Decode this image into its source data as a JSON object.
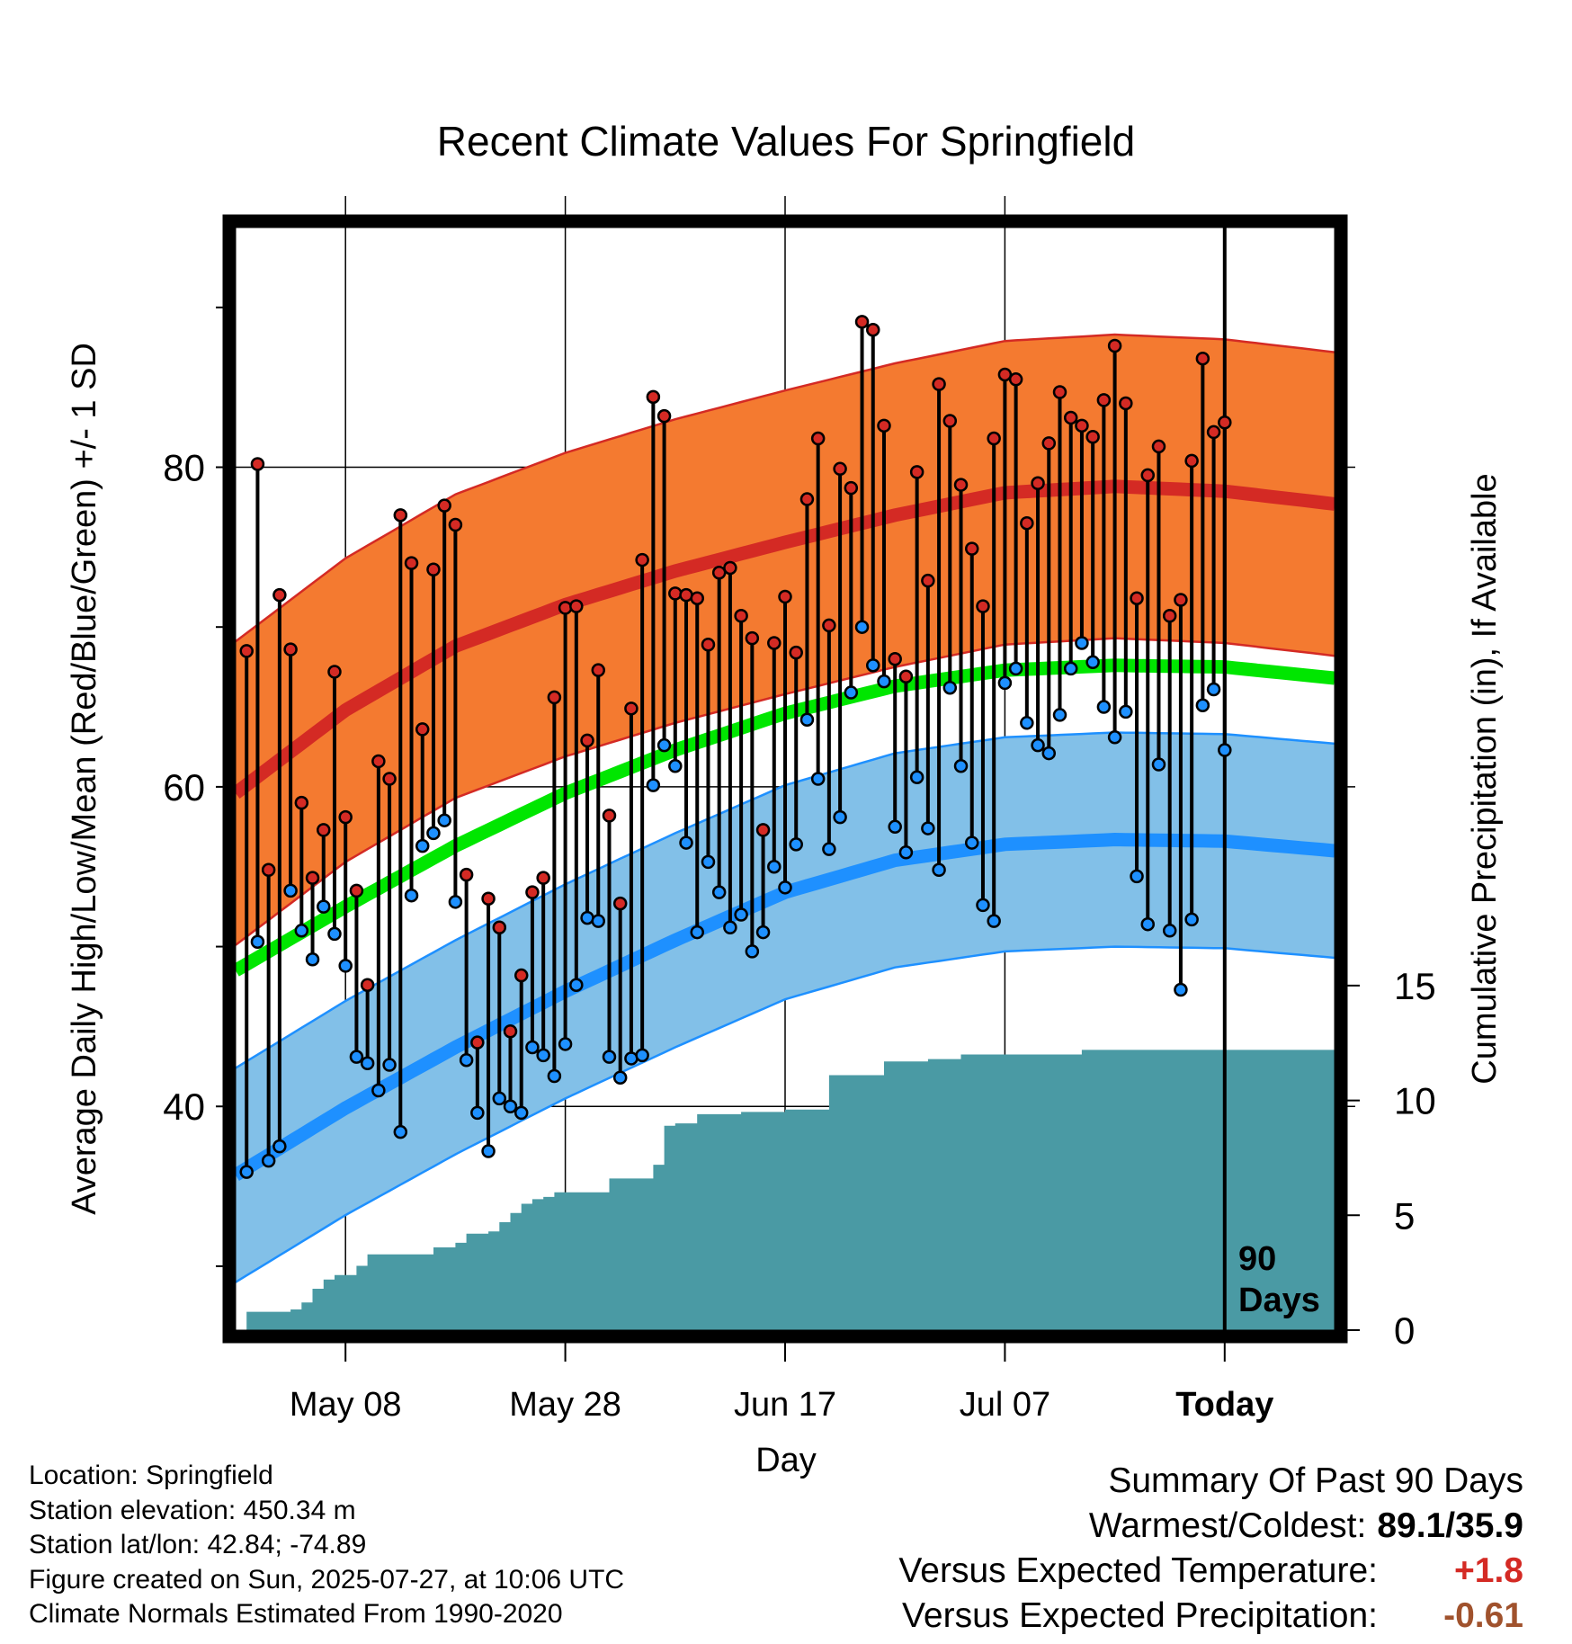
{
  "chart_data": {
    "type": "line",
    "title": "Recent Climate Values For Springfield",
    "xlabel": "Day",
    "ylabel_left": "Average Daily High/Low/Mean (Red/Blue/Green) +/- 1 SD",
    "ylabel_right": "Cumulative Precipitation (in), If Available",
    "x_range": [
      "2025-04-28",
      "2025-08-06"
    ],
    "x_ticks": [
      {
        "date": "2025-05-08",
        "label": "May 08"
      },
      {
        "date": "2025-05-28",
        "label": "May 28"
      },
      {
        "date": "2025-06-17",
        "label": "Jun 17"
      },
      {
        "date": "2025-07-07",
        "label": "Jul 07"
      },
      {
        "date": "2025-07-27",
        "label": "Today"
      }
    ],
    "y_left_range": [
      26,
      95
    ],
    "y_left_ticks": [
      40,
      60,
      80
    ],
    "y_left_minor_ticks": [
      30,
      50,
      70,
      90
    ],
    "y_right_range": [
      0,
      48
    ],
    "y_right_ticks": [
      0,
      5,
      10,
      15
    ],
    "grid": true,
    "today_line": {
      "date": "2025-07-27",
      "label_top": "90",
      "label_bottom": "Days"
    },
    "normal_dates": [
      "2025-04-28",
      "2025-05-08",
      "2025-05-18",
      "2025-05-28",
      "2025-06-07",
      "2025-06-17",
      "2025-06-27",
      "2025-07-07",
      "2025-07-17",
      "2025-07-27",
      "2025-08-06"
    ],
    "normal_high": [
      59.6,
      64.8,
      68.8,
      71.4,
      73.5,
      75.3,
      77.0,
      78.4,
      78.8,
      78.5,
      77.7
    ],
    "normal_high_sd": 9.5,
    "normal_low": [
      35.7,
      39.9,
      43.7,
      47.2,
      50.4,
      53.4,
      55.4,
      56.4,
      56.7,
      56.6,
      56.0
    ],
    "normal_low_sd": 6.7,
    "normal_mean": [
      48.5,
      52.5,
      56.3,
      59.6,
      62.3,
      64.6,
      66.3,
      67.3,
      67.6,
      67.5,
      66.8
    ],
    "daily_high": [
      68.5,
      80.2,
      54.8,
      72.0,
      68.6,
      59.0,
      54.3,
      57.3,
      67.2,
      58.1,
      53.5,
      47.6,
      61.6,
      60.5,
      77.0,
      74.0,
      63.6,
      73.6,
      77.6,
      76.4,
      54.5,
      44.0,
      53.0,
      51.2,
      44.7,
      48.2,
      53.4,
      54.3,
      65.6,
      71.2,
      71.3,
      62.9,
      67.3,
      58.2,
      52.7,
      64.9,
      74.2,
      84.4,
      83.2,
      72.1,
      72.0,
      71.8,
      68.9,
      73.4,
      73.7,
      70.7,
      69.3,
      57.3,
      69.0,
      71.9,
      68.4,
      78.0,
      81.8,
      70.1,
      79.9,
      78.7,
      89.1,
      88.6,
      82.6,
      68.0,
      66.9,
      79.7,
      72.9,
      85.2,
      82.9,
      78.9,
      74.9,
      71.3,
      81.8,
      85.8,
      85.5,
      76.5,
      79.0,
      81.5,
      84.7,
      83.1,
      82.6,
      81.9,
      84.2,
      87.6,
      84.0,
      71.8,
      79.5,
      81.3,
      70.7,
      71.7,
      80.4,
      86.8,
      82.2,
      82.8
    ],
    "daily_low": [
      35.9,
      50.3,
      36.6,
      37.5,
      53.5,
      51.0,
      49.2,
      52.5,
      50.8,
      48.8,
      43.1,
      42.7,
      41.0,
      42.6,
      38.4,
      53.2,
      56.3,
      57.1,
      57.9,
      52.8,
      42.9,
      39.6,
      37.2,
      40.5,
      40.0,
      39.6,
      43.7,
      43.2,
      41.9,
      43.9,
      47.6,
      51.8,
      51.6,
      43.1,
      41.8,
      43.0,
      43.2,
      60.1,
      62.6,
      61.3,
      56.5,
      50.9,
      55.3,
      53.4,
      51.2,
      52.0,
      49.7,
      50.9,
      55.0,
      53.7,
      56.4,
      64.2,
      60.5,
      56.1,
      58.1,
      65.9,
      70.0,
      67.6,
      66.6,
      57.5,
      55.9,
      60.6,
      57.4,
      54.8,
      66.2,
      61.3,
      56.5,
      52.6,
      51.6,
      66.5,
      67.4,
      64.0,
      62.6,
      62.1,
      64.5,
      67.4,
      69.0,
      67.8,
      65.0,
      63.1,
      64.7,
      54.4,
      51.4,
      61.4,
      51.0,
      47.3,
      51.7,
      65.1,
      66.1,
      62.3
    ],
    "cumulative_precip_dates": [
      "2025-04-28",
      "2025-04-29",
      "2025-05-03",
      "2025-05-04",
      "2025-05-05",
      "2025-05-06",
      "2025-05-07",
      "2025-05-08",
      "2025-05-09",
      "2025-05-10",
      "2025-05-11",
      "2025-05-15",
      "2025-05-16",
      "2025-05-18",
      "2025-05-19",
      "2025-05-21",
      "2025-05-22",
      "2025-05-23",
      "2025-05-24",
      "2025-05-25",
      "2025-05-26",
      "2025-05-27",
      "2025-05-31",
      "2025-06-01",
      "2025-06-04",
      "2025-06-05",
      "2025-06-06",
      "2025-06-07",
      "2025-06-09",
      "2025-06-10",
      "2025-06-13",
      "2025-06-17",
      "2025-06-20",
      "2025-06-21",
      "2025-06-25",
      "2025-06-26",
      "2025-06-30",
      "2025-07-03",
      "2025-07-13",
      "2025-07-14",
      "2025-08-06"
    ],
    "cumulative_precip": [
      0.0,
      0.8,
      0.9,
      1.2,
      1.8,
      2.2,
      2.4,
      2.4,
      2.8,
      3.3,
      3.3,
      3.3,
      3.6,
      3.8,
      4.2,
      4.3,
      4.7,
      5.1,
      5.5,
      5.7,
      5.8,
      6.0,
      6.0,
      6.6,
      6.6,
      7.2,
      8.9,
      9.0,
      9.4,
      9.4,
      9.5,
      9.6,
      9.6,
      11.1,
      11.1,
      11.7,
      11.8,
      12.0,
      12.0,
      12.2,
      12.2
    ]
  },
  "info": {
    "location": "Location: Springfield",
    "elevation": "Station elevation: 450.34 m",
    "latlon": "Station lat/lon: 42.84; -74.89",
    "created": "Figure created on Sun, 2025-07-27, at 10:06 UTC",
    "normals": "Climate Normals Estimated From 1990-2020"
  },
  "summary": {
    "title": "Summary Of Past 90 Days",
    "warm_cold_label": "Warmest/Coldest:",
    "warm_cold_value": "89.1/35.9",
    "temp_label": "Versus Expected Temperature:",
    "temp_value": "+1.8",
    "precip_label": "Versus Expected Precipitation:",
    "precip_value": "-0.61"
  },
  "colors": {
    "high_band": "#f47a30",
    "high_line": "#d42a24",
    "low_band": "#82c0e8",
    "low_line": "#1e90ff",
    "mean_line": "#00e600",
    "precip": "#4a9aa4",
    "high_dot": "#d42a24",
    "low_dot": "#1e90ff",
    "temp_anomaly": "#d42a24",
    "precip_anomaly": "#a0522d"
  }
}
